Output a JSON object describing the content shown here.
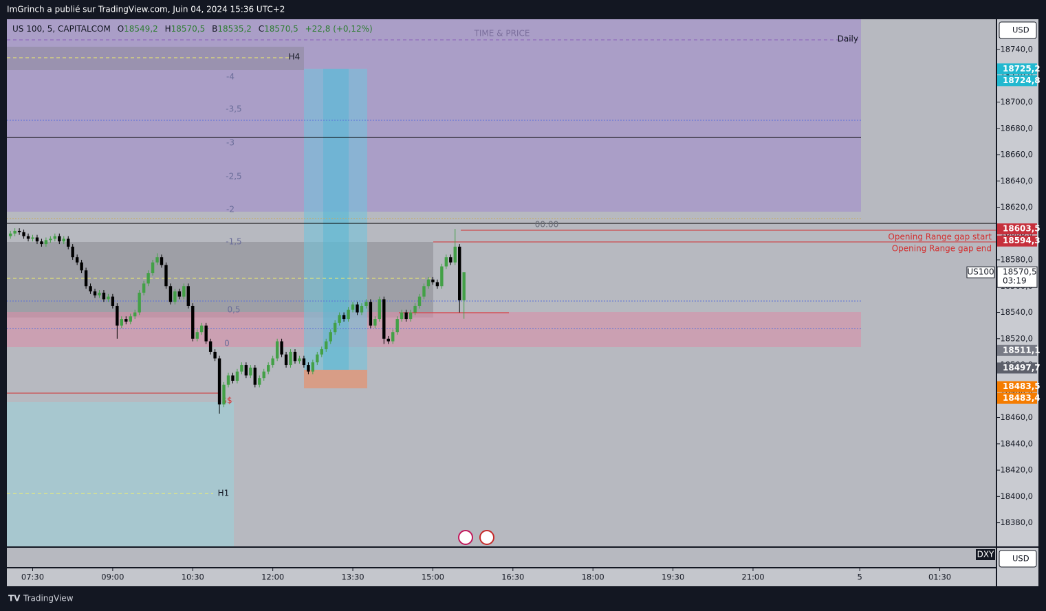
{
  "header": {
    "published": "ImGrinch a publié sur TradingView.com, Juin 04, 2024 15:36 UTC+2"
  },
  "legend": {
    "symbol": "US 100, 5, CAPITALCOM",
    "o_key": "O",
    "o": "18549,2",
    "h_key": "H",
    "h": "18570,5",
    "b_key": "B",
    "b": "18535,2",
    "c_key": "C",
    "c": "18570,5",
    "change": "+22,8 (+0,12%)"
  },
  "footer": {
    "brand": "TradingView"
  },
  "axis_currency": "USD",
  "lower_axis_currency": "USD",
  "lower_pane": "DXY",
  "symbol_tag": "US100",
  "countdown": "03:19",
  "annotations": [
    "TIME & PRICE",
    "Daily",
    "H4",
    "H1",
    "00:00",
    "Opening Range gap start",
    "Opening Range gap end",
    "$$",
    "-4",
    "-3,5",
    "-3",
    "-2,5",
    "-2",
    "-1,5",
    "0,5",
    "0"
  ],
  "chart_data": {
    "type": "candlestick",
    "up_color": "#43a047",
    "down_color": "#000000",
    "xlim": [
      421,
      1533
    ],
    "ylim": [
      18362,
      18763
    ],
    "xticks": [
      {
        "value": 450,
        "label": "07:30"
      },
      {
        "value": 540,
        "label": "09:00"
      },
      {
        "value": 630,
        "label": "10:30"
      },
      {
        "value": 720,
        "label": "12:00"
      },
      {
        "value": 810,
        "label": "13:30"
      },
      {
        "value": 900,
        "label": "15:00"
      },
      {
        "value": 990,
        "label": "16:30"
      },
      {
        "value": 1080,
        "label": "18:00"
      },
      {
        "value": 1170,
        "label": "19:30"
      },
      {
        "value": 1260,
        "label": "21:00"
      },
      {
        "value": 1380,
        "label": "5"
      },
      {
        "value": 1470,
        "label": "01:30"
      }
    ],
    "yticks": [
      {
        "value": 18740,
        "label": "18740,0"
      },
      {
        "value": 18720,
        "label": "18720,0"
      },
      {
        "value": 18700,
        "label": "18700,0"
      },
      {
        "value": 18680,
        "label": "18680,0"
      },
      {
        "value": 18660,
        "label": "18660,0"
      },
      {
        "value": 18640,
        "label": "18640,0"
      },
      {
        "value": 18620,
        "label": "18620,0"
      },
      {
        "value": 18600,
        "label": "18600,0"
      },
      {
        "value": 18580,
        "label": "18580,0"
      },
      {
        "value": 18560,
        "label": "18560,0"
      },
      {
        "value": 18540,
        "label": "18540,0"
      },
      {
        "value": 18520,
        "label": "18520,0"
      },
      {
        "value": 18500,
        "label": "18500,0"
      },
      {
        "value": 18480,
        "label": "18480,0"
      },
      {
        "value": 18460,
        "label": "18460,0"
      },
      {
        "value": 18440,
        "label": "18440,0"
      },
      {
        "value": 18420,
        "label": "18420,0"
      },
      {
        "value": 18400,
        "label": "18400,0"
      },
      {
        "value": 18380,
        "label": "18380,0"
      }
    ],
    "price_labels": [
      {
        "value": 18725.2,
        "label": "18725,2",
        "color": "#22b8cf"
      },
      {
        "value": 18724.8,
        "label": "18724,8",
        "color": "#22b8cf"
      },
      {
        "value": 18603.5,
        "label": "18603,5",
        "color": "#c62f3b"
      },
      {
        "value": 18594.3,
        "label": "18594,3",
        "color": "#c62f3b"
      },
      {
        "value": 18570.5,
        "label": "18570,5",
        "color": "#ffffff"
      },
      {
        "value": 18511.1,
        "label": "18511,1",
        "color": "#787b86"
      },
      {
        "value": 18497.7,
        "label": "18497,7",
        "color": "#5d606b"
      },
      {
        "value": 18483.5,
        "label": "18483,5",
        "color": "#f57c00"
      },
      {
        "value": 18483.4,
        "label": "18483,4",
        "color": "#f57c00"
      }
    ],
    "x": [
      425,
      430,
      435,
      440,
      445,
      450,
      455,
      460,
      465,
      470,
      475,
      480,
      485,
      490,
      495,
      500,
      505,
      510,
      515,
      520,
      525,
      530,
      535,
      540,
      545,
      550,
      555,
      560,
      565,
      570,
      575,
      580,
      585,
      590,
      595,
      600,
      605,
      610,
      615,
      620,
      625,
      630,
      635,
      640,
      645,
      650,
      655,
      660,
      665,
      670,
      675,
      680,
      685,
      690,
      695,
      700,
      705,
      710,
      715,
      720,
      725,
      730,
      735,
      740,
      745,
      750,
      755,
      760,
      765,
      770,
      775,
      780,
      785,
      790,
      795,
      800,
      805,
      810,
      815,
      820,
      825,
      830,
      835,
      840,
      845,
      850,
      855,
      860,
      865,
      870,
      875,
      880,
      885,
      890,
      895,
      900,
      905,
      910,
      915,
      920,
      925,
      930,
      935
    ],
    "open": [
      18598,
      18600,
      18602,
      18601,
      18598,
      18596,
      18597,
      18594,
      18592,
      18595,
      18596,
      18598,
      18594,
      18596,
      18590,
      18582,
      18578,
      18572,
      18560,
      18556,
      18553,
      18555,
      18550,
      18552,
      18545,
      18530,
      18535,
      18533,
      18537,
      18540,
      18555,
      18562,
      18570,
      18578,
      18582,
      18576,
      18560,
      18548,
      18556,
      18552,
      18560,
      18545,
      18520,
      18525,
      18530,
      18518,
      18510,
      18505,
      18470,
      18485,
      18492,
      18488,
      18495,
      18500,
      18492,
      18498,
      18485,
      18490,
      18495,
      18500,
      18505,
      18518,
      18508,
      18500,
      18510,
      18503,
      18505,
      18500,
      18495,
      18502,
      18508,
      18512,
      18518,
      18525,
      18532,
      18538,
      18535,
      18542,
      18546,
      18540,
      18545,
      18548,
      18530,
      18535,
      18550,
      18520,
      18518,
      18525,
      18535,
      18540,
      18535,
      18540,
      18545,
      18552,
      18560,
      18565,
      18563,
      18560,
      18575,
      18582,
      18578,
      18590,
      18549.2
    ],
    "high": [
      18602,
      18604,
      18604,
      18603,
      18600,
      18599,
      18599,
      18596,
      18597,
      18598,
      18600,
      18600,
      18598,
      18598,
      18592,
      18584,
      18580,
      18574,
      18562,
      18558,
      18557,
      18557,
      18554,
      18554,
      18547,
      18537,
      18537,
      18539,
      18542,
      18557,
      18564,
      18572,
      18580,
      18585,
      18584,
      18578,
      18562,
      18558,
      18558,
      18562,
      18562,
      18547,
      18527,
      18532,
      18532,
      18520,
      18512,
      18507,
      18487,
      18494,
      18494,
      18497,
      18502,
      18502,
      18500,
      18500,
      18492,
      18497,
      18502,
      18507,
      18520,
      18520,
      18510,
      18512,
      18512,
      18507,
      18507,
      18502,
      18504,
      18510,
      18514,
      18520,
      18527,
      18534,
      18540,
      18540,
      18544,
      18548,
      18548,
      18547,
      18550,
      18550,
      18537,
      18552,
      18552,
      18522,
      18527,
      18537,
      18542,
      18542,
      18542,
      18547,
      18554,
      18562,
      18567,
      18567,
      18565,
      18577,
      18584,
      18584,
      18603.5,
      18592,
      18570.5
    ],
    "low": [
      18596,
      18598,
      18599,
      18596,
      18594,
      18594,
      18592,
      18590,
      18590,
      18593,
      18594,
      18592,
      18592,
      18588,
      18580,
      18576,
      18570,
      18558,
      18554,
      18551,
      18551,
      18548,
      18548,
      18543,
      18520,
      18528,
      18531,
      18531,
      18535,
      18538,
      18553,
      18560,
      18568,
      18576,
      18574,
      18558,
      18546,
      18546,
      18550,
      18550,
      18543,
      18518,
      18518,
      18523,
      18516,
      18508,
      18503,
      18463,
      18468,
      18483,
      18486,
      18486,
      18493,
      18490,
      18490,
      18483,
      18483,
      18488,
      18493,
      18498,
      18503,
      18506,
      18498,
      18498,
      18501,
      18501,
      18498,
      18493,
      18493,
      18500,
      18506,
      18510,
      18516,
      18523,
      18530,
      18533,
      18533,
      18540,
      18538,
      18538,
      18543,
      18528,
      18528,
      18533,
      18516,
      18516,
      18516,
      18523,
      18533,
      18533,
      18533,
      18538,
      18543,
      18550,
      18558,
      18561,
      18558,
      18558,
      18573,
      18576,
      18576,
      18540,
      18535.2
    ],
    "close": [
      18600,
      18602,
      18601,
      18598,
      18596,
      18597,
      18594,
      18592,
      18595,
      18596,
      18598,
      18594,
      18596,
      18590,
      18582,
      18578,
      18572,
      18560,
      18556,
      18553,
      18555,
      18550,
      18552,
      18545,
      18530,
      18535,
      18533,
      18537,
      18540,
      18555,
      18562,
      18570,
      18578,
      18582,
      18576,
      18560,
      18548,
      18556,
      18552,
      18560,
      18545,
      18520,
      18525,
      18530,
      18518,
      18510,
      18505,
      18470,
      18485,
      18492,
      18488,
      18495,
      18500,
      18492,
      18498,
      18485,
      18490,
      18495,
      18500,
      18505,
      18518,
      18508,
      18500,
      18510,
      18503,
      18505,
      18500,
      18495,
      18502,
      18508,
      18512,
      18518,
      18525,
      18532,
      18538,
      18535,
      18542,
      18546,
      18540,
      18545,
      18548,
      18530,
      18535,
      18550,
      18520,
      18518,
      18525,
      18535,
      18540,
      18535,
      18540,
      18545,
      18552,
      18560,
      18565,
      18563,
      18560,
      18575,
      18582,
      18578,
      18590,
      18549.2,
      18570.5
    ]
  }
}
